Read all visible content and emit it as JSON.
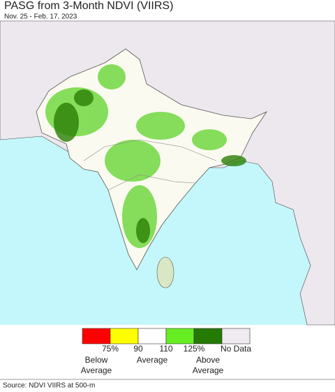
{
  "header": {
    "title": "PASG from 3-Month NDVI (VIIRS)",
    "subtitle": "Nov. 25 - Feb. 17, 2023"
  },
  "legend": {
    "colors": [
      "#ff0000",
      "#ffff00",
      "#ffffff",
      "#66ee22",
      "#257a03",
      "#eeeaf0"
    ],
    "ticks": [
      "75%",
      "90",
      "110",
      "125%"
    ],
    "no_data": "No Data",
    "captions": [
      [
        "Below",
        "Average"
      ],
      [
        "Average"
      ],
      [
        "Above",
        "Average"
      ]
    ]
  },
  "source": "Source: NDVI VIIRS at 500-m"
}
